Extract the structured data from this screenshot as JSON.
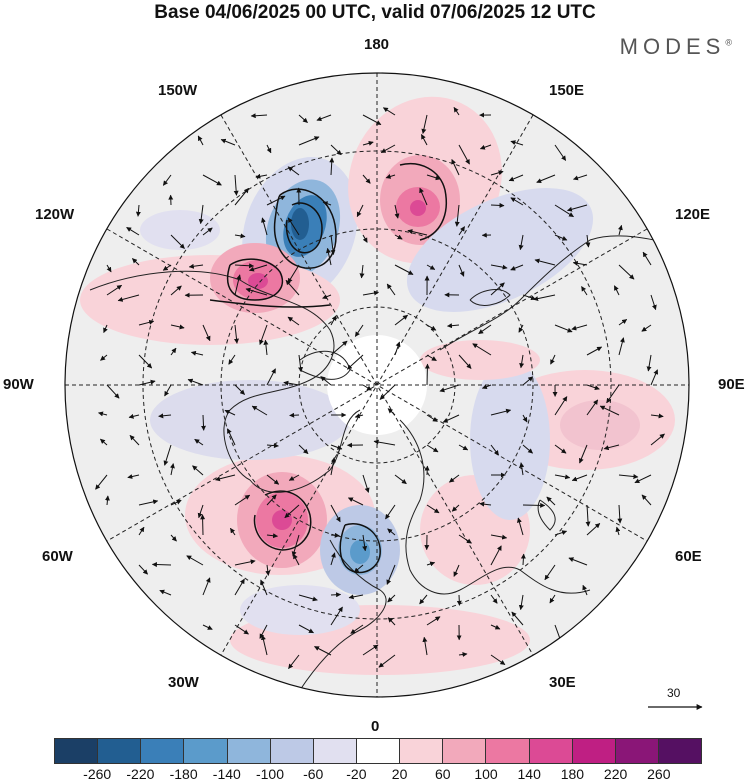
{
  "title": "Base 04/06/2025 00 UTC, valid 07/06/2025 12 UTC",
  "brand": "MODES",
  "brand_mark": "®",
  "longitude_labels": {
    "n180": "180",
    "w150": "150W",
    "e150": "150E",
    "w120": "120W",
    "e120": "120E",
    "w90": "90W",
    "e90": "90E",
    "w60": "60W",
    "e60": "60E",
    "w30": "30W",
    "e30": "30E",
    "s0": "0"
  },
  "vector_scale": {
    "label": "30"
  },
  "colorbar": {
    "ticks": [
      "-260",
      "-220",
      "-180",
      "-140",
      "-100",
      "-60",
      "-20",
      "20",
      "60",
      "100",
      "140",
      "180",
      "220",
      "260"
    ],
    "colors": [
      "#1b3f66",
      "#225e91",
      "#3a7fb8",
      "#5b9bcb",
      "#8fb6dc",
      "#bdc9e6",
      "#e1e0f0",
      "#ffffff",
      "#f9d3d9",
      "#f2a9bb",
      "#ec78a2",
      "#dc4a95",
      "#bf1f83",
      "#8a1677",
      "#551062"
    ]
  }
}
